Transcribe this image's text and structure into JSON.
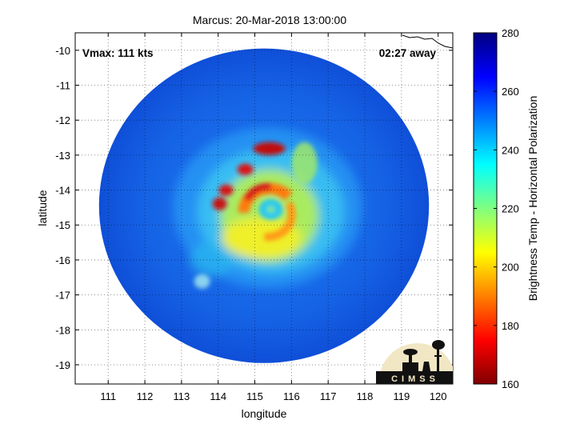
{
  "chart_data": {
    "type": "heatmap",
    "title": "Marcus: 20-Mar-2018 13:00:00",
    "xlabel": "longitude",
    "ylabel": "latitude",
    "xlim": [
      110.1,
      120.4
    ],
    "ylim": [
      -19.55,
      -9.5
    ],
    "x_ticks": [
      111,
      112,
      113,
      114,
      115,
      116,
      117,
      118,
      119,
      120
    ],
    "y_ticks": [
      -10,
      -11,
      -12,
      -13,
      -14,
      -15,
      -16,
      -17,
      -18,
      -19
    ],
    "grid": true,
    "annotations": {
      "vmax": "Vmax: 111 kts",
      "age": "02:27 away"
    },
    "colorbar": {
      "label": "Brightness Temp - Horizontal Polarization",
      "min": 160,
      "max": 280,
      "ticks": [
        160,
        180,
        200,
        220,
        240,
        260,
        280
      ],
      "colormap": [
        "#800000",
        "#ff0000",
        "#ffff00",
        "#00ffff",
        "#0000ff",
        "#000080"
      ]
    },
    "swath": {
      "center_lon": 115.25,
      "center_lat": -14.45,
      "radius_deg": 4.5
    },
    "storm_center": {
      "lon": 115.35,
      "lat": -14.6
    },
    "logo": "CIMSS"
  }
}
